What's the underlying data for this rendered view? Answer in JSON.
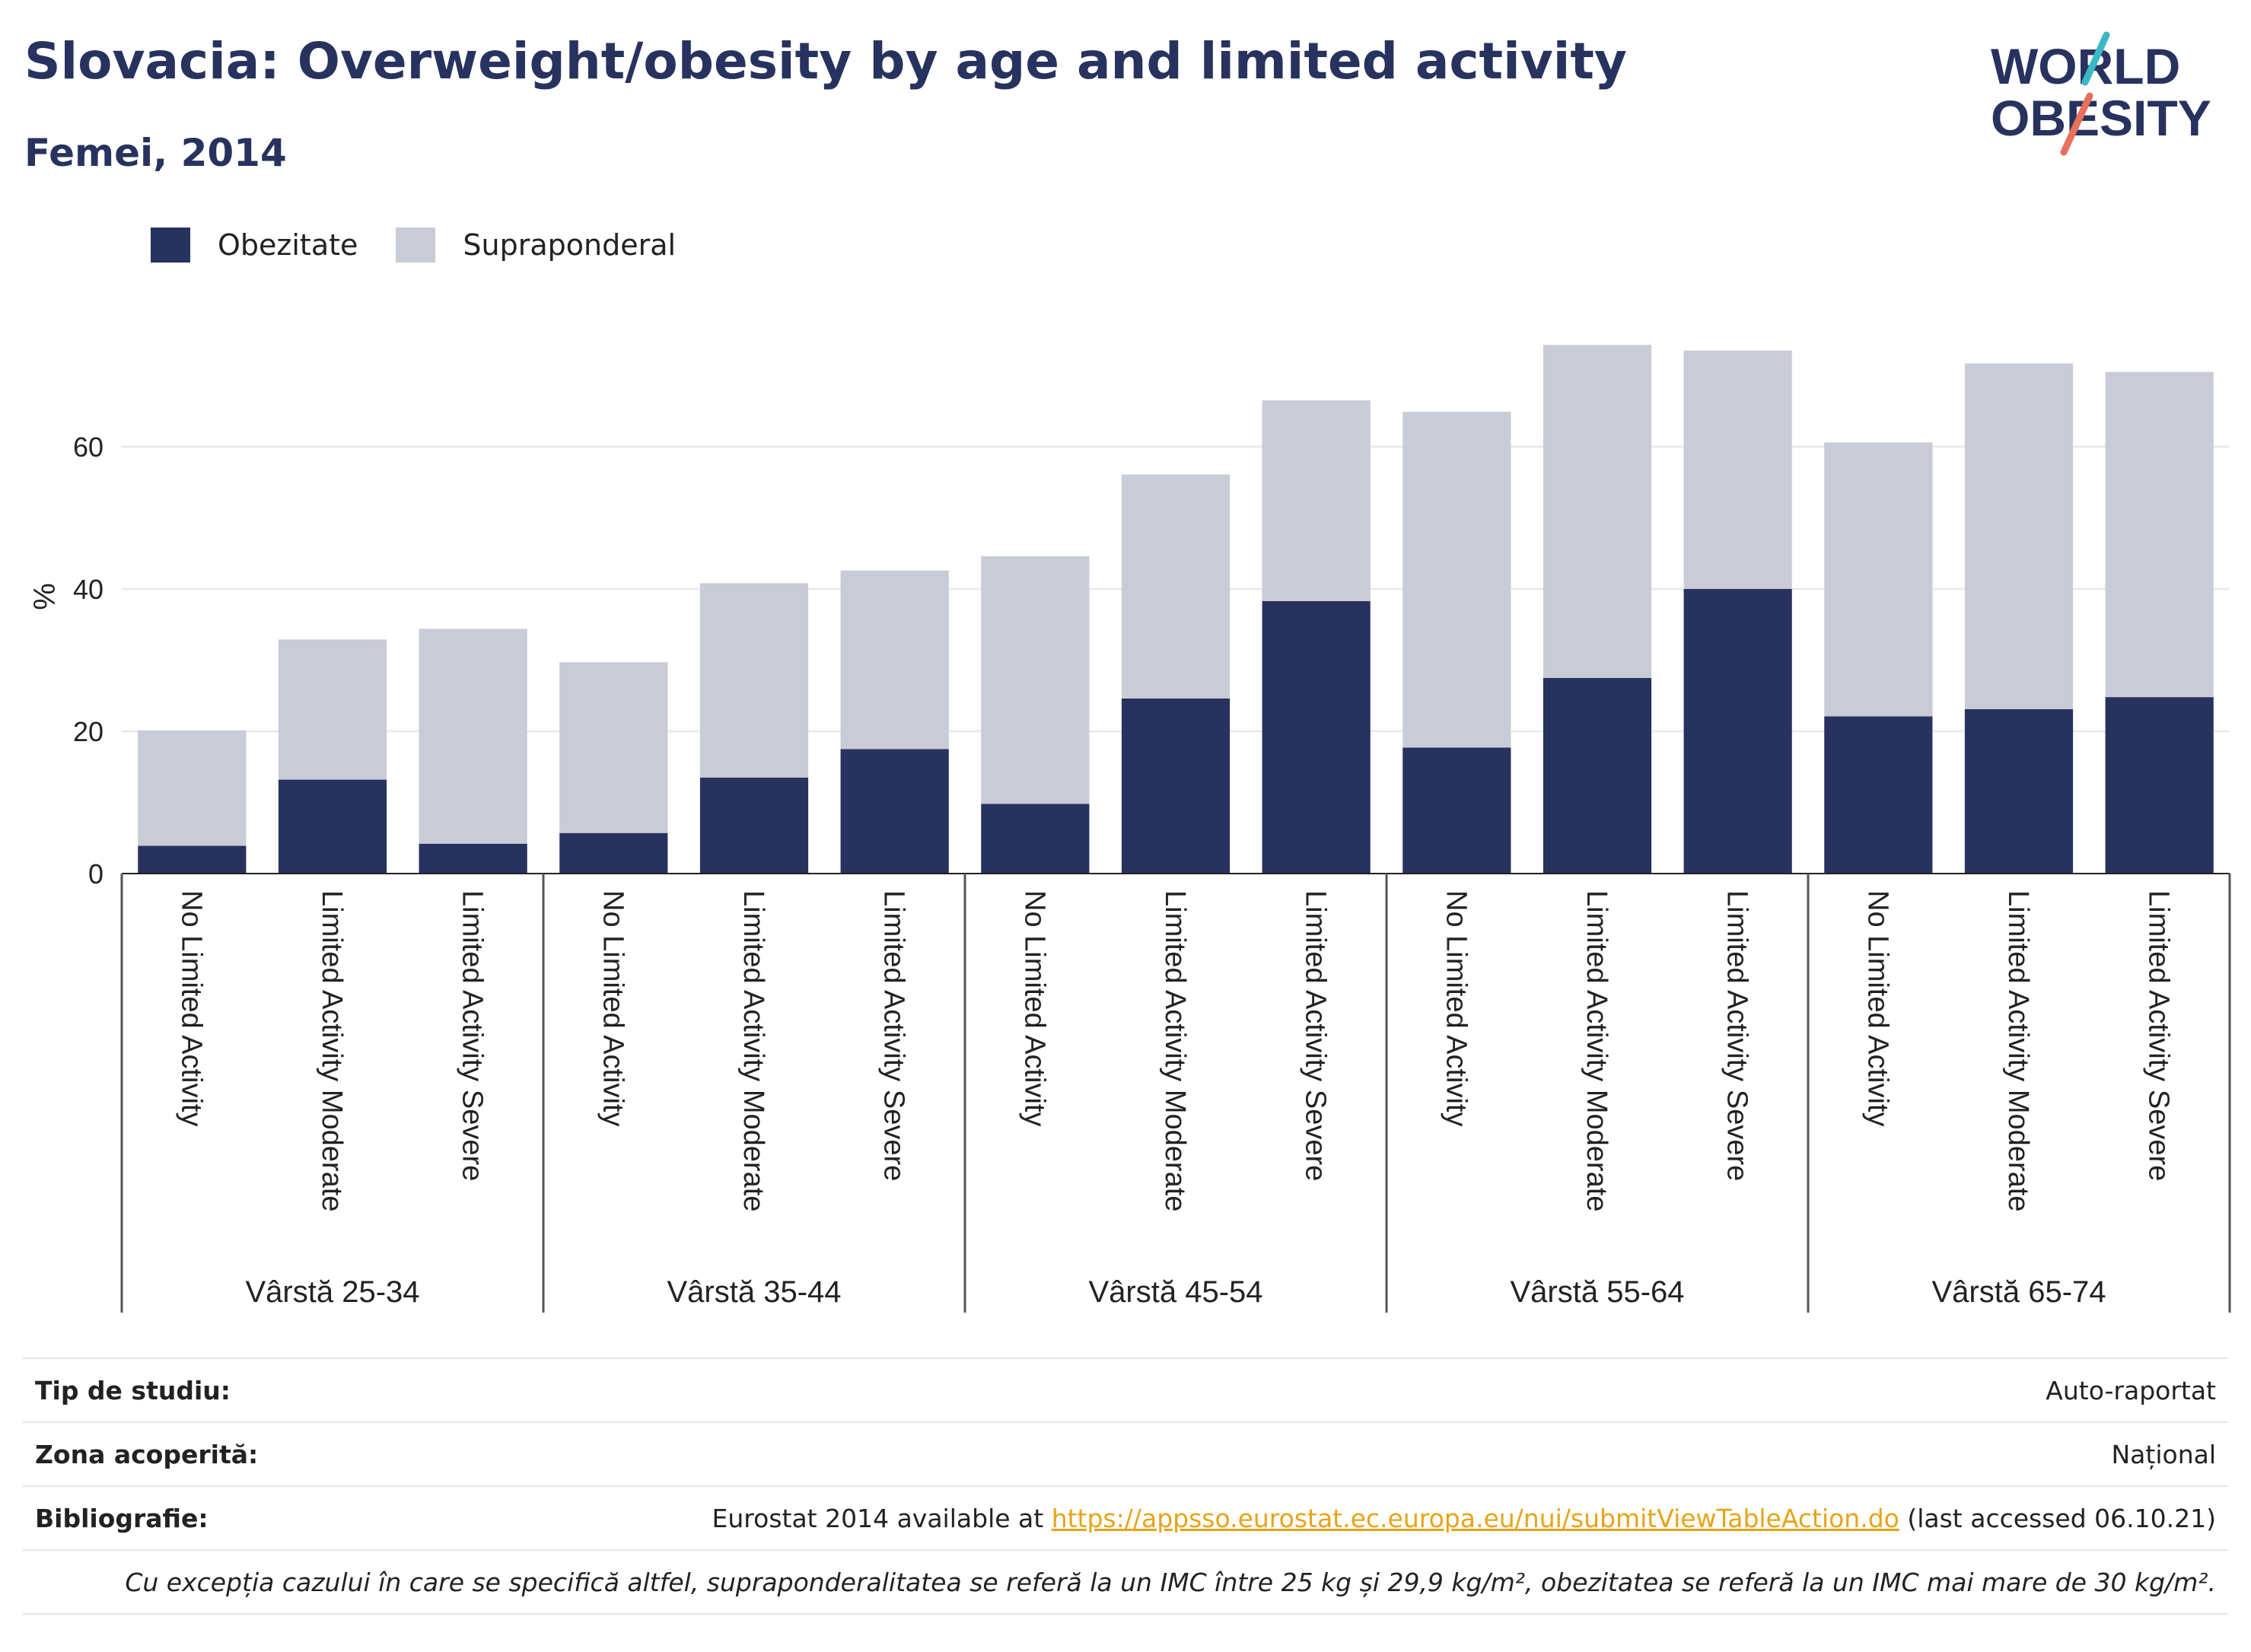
{
  "title": "Slovacia: Overweight/obesity by age and limited activity",
  "subtitle": "Femei, 2014",
  "logo": {
    "line1": "WORLD",
    "line2": "OBESITY"
  },
  "colors": {
    "obesity": "#27325e",
    "overweight": "#c9cbd6",
    "accent_red": "#e8705c",
    "accent_teal": "#3ab8c6",
    "link": "#e6a419"
  },
  "chart_data": {
    "type": "bar",
    "stacked": true,
    "ylabel": "%",
    "ylim": [
      0,
      80
    ],
    "yticks": [
      0,
      20,
      40,
      60
    ],
    "grid": true,
    "legend_position": "top-left",
    "groups": [
      "Vârstă 25-34",
      "Vârstă 35-44",
      "Vârstă 45-54",
      "Vârstă 55-64",
      "Vârstă 65-74"
    ],
    "subcategories": [
      "No Limited Activity",
      "Limited Activity Moderate",
      "Limited Activity Severe"
    ],
    "series": [
      {
        "name": "Obezitate",
        "values": [
          3.9,
          13.2,
          4.2,
          5.7,
          13.5,
          17.5,
          9.8,
          24.6,
          38.3,
          17.7,
          27.5,
          40.0,
          22.1,
          23.1,
          24.8
        ]
      },
      {
        "name": "Supraponderal",
        "values": [
          16.2,
          19.7,
          30.2,
          24.0,
          27.3,
          25.1,
          34.8,
          31.5,
          28.2,
          47.2,
          46.8,
          33.5,
          38.5,
          48.6,
          45.7
        ]
      }
    ]
  },
  "footer": {
    "study_type_label": "Tip de studiu:",
    "study_type_value": "Auto-raportat",
    "coverage_label": "Zona acoperită:",
    "coverage_value": "Național",
    "bibliography_label": "Bibliografie:",
    "bibliography_prefix": "Eurostat 2014 available at",
    "bibliography_link": "https://appsso.eurostat.ec.europa.eu/nui/submitViewTableAction.do",
    "bibliography_suffix": "(last accessed 06.10.21)",
    "note": "Cu excepția cazului în care se specifică altfel, supraponderalitatea se referă la un IMC între 25 kg și 29,9 kg/m², obezitatea se referă la un IMC mai mare de 30 kg/m²."
  }
}
